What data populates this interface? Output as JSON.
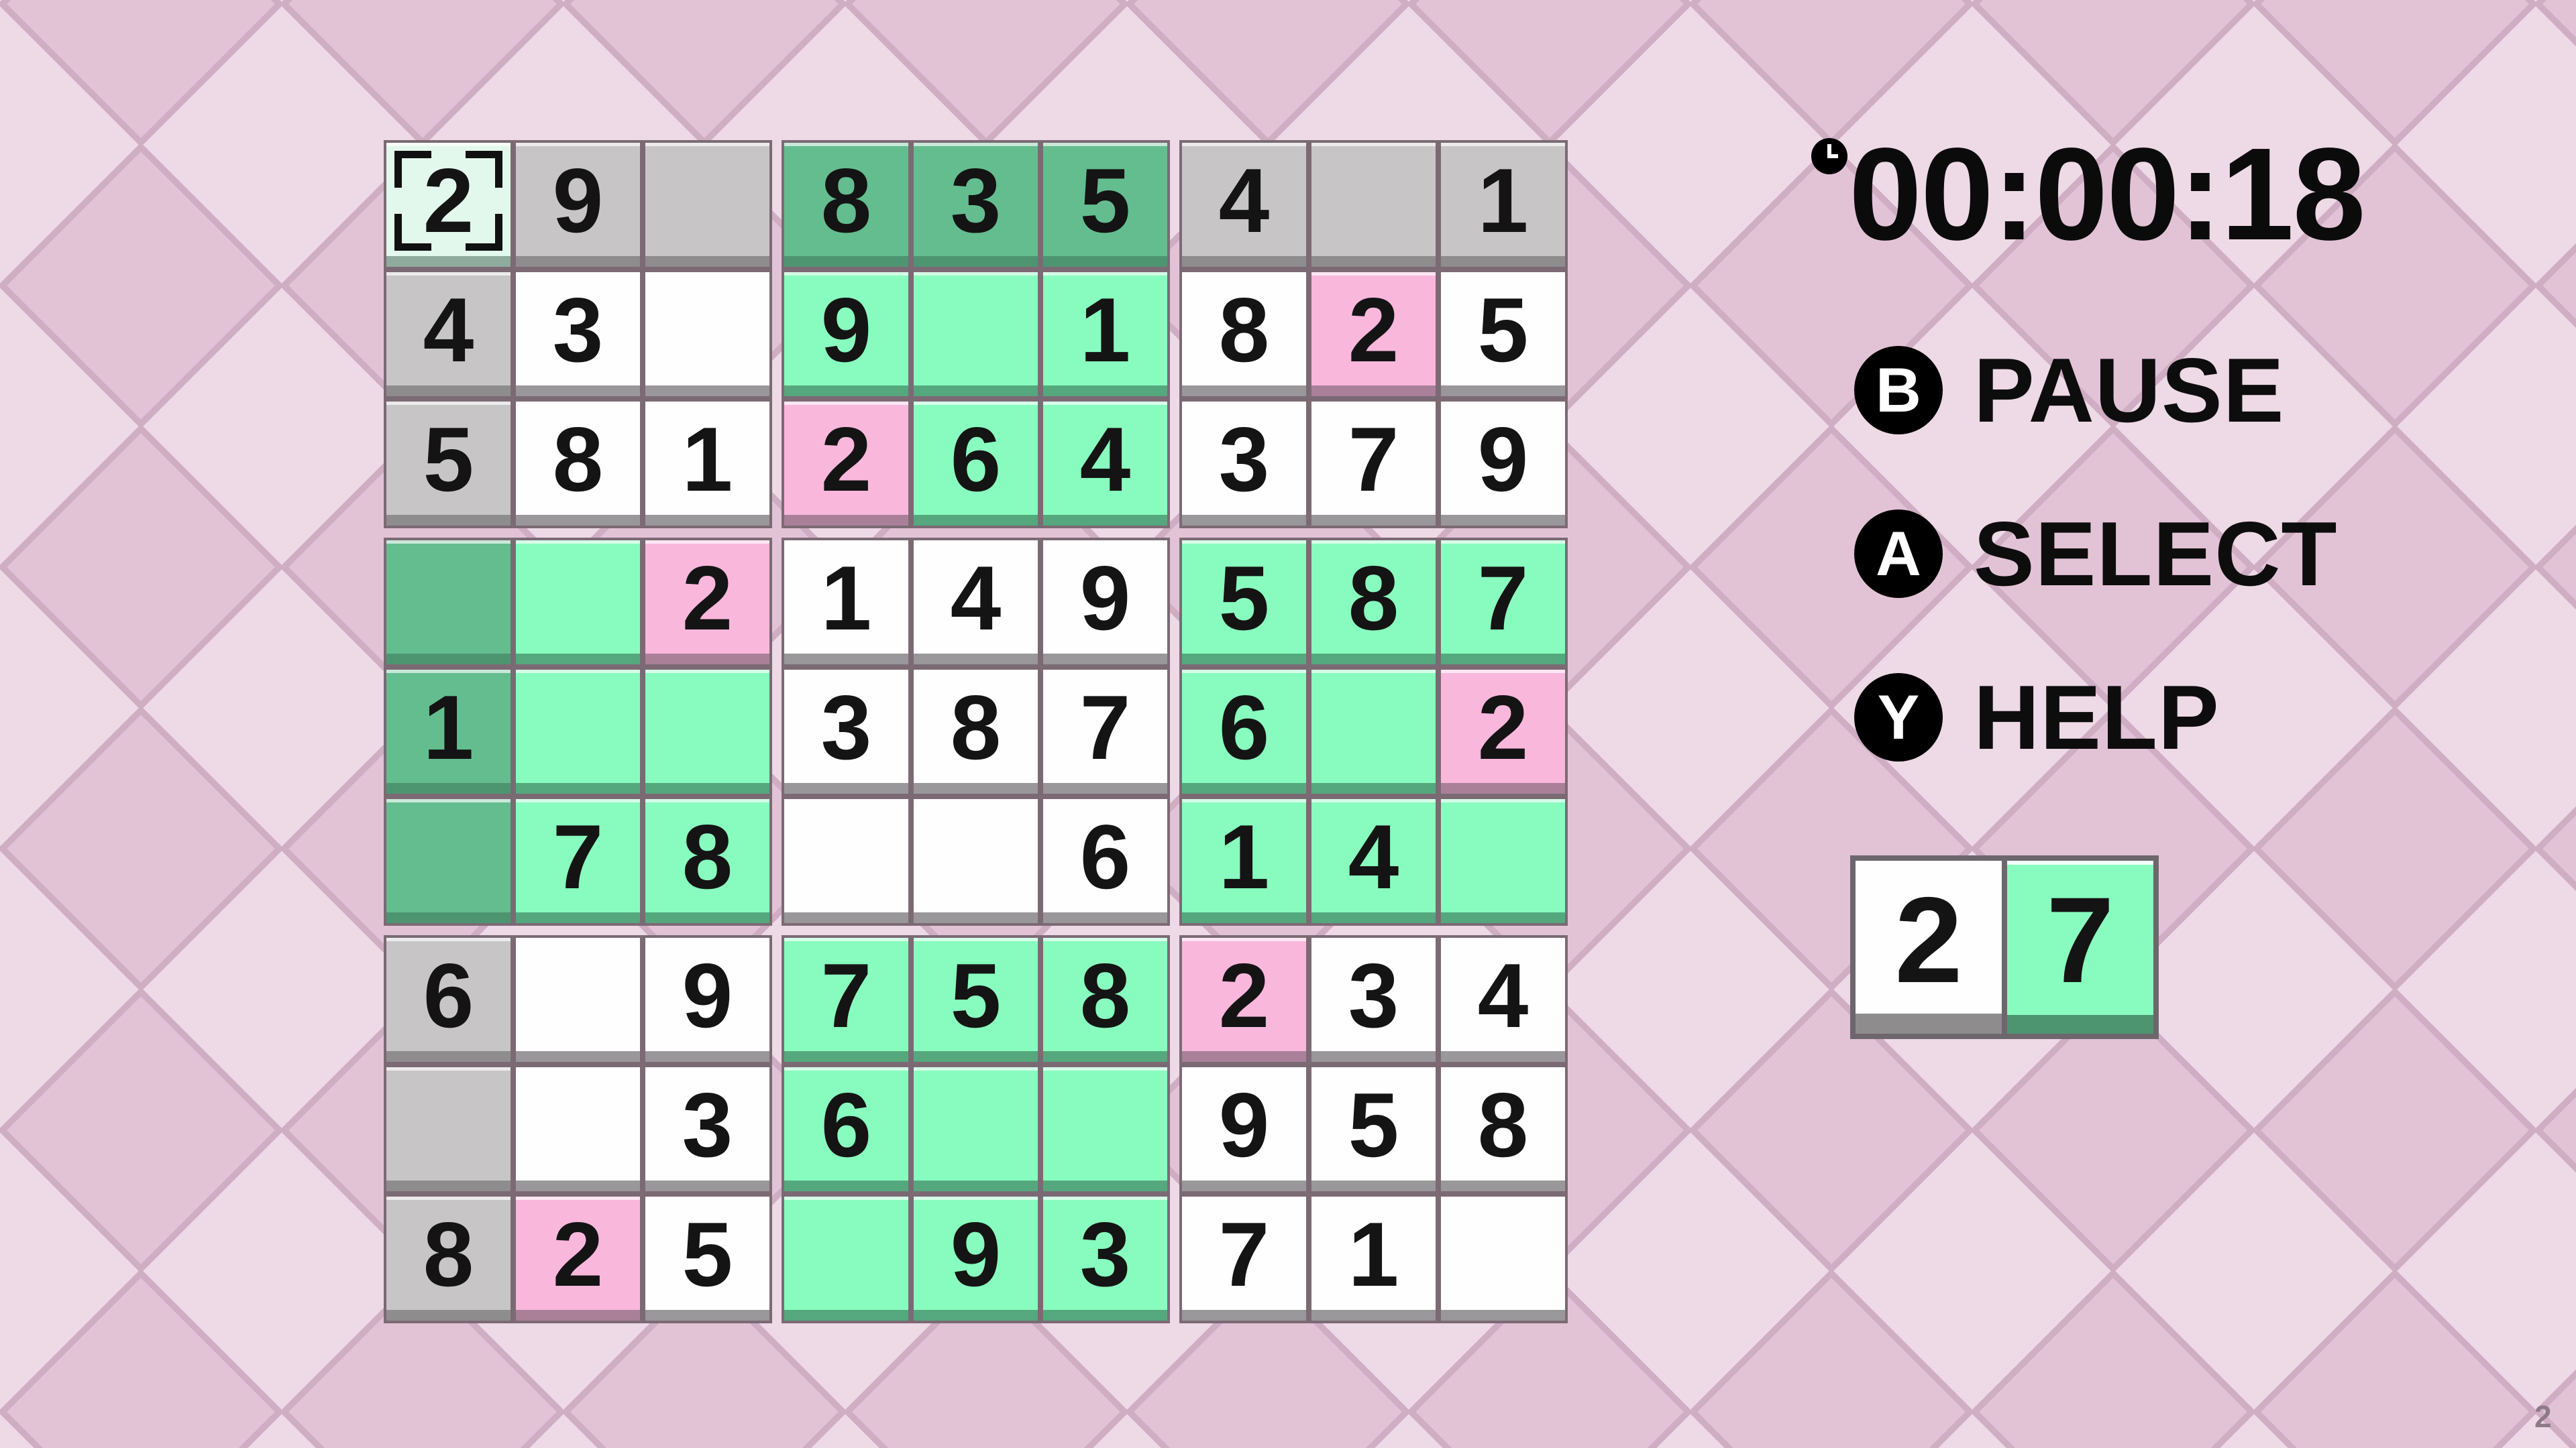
{
  "app": {
    "watermark": "2"
  },
  "colors": {
    "bg_light": "#eed9e6",
    "bg_dark": "#e2c3d6",
    "bg_line": "#cfadc3",
    "border": "#7b6a74",
    "digit": "#141414",
    "text": "#0d0d0d",
    "cell_gray": "#c8c5c7",
    "cell_white": "#fefefe",
    "cell_green": "#88fcbe",
    "cell_dark_green": "#64bd8f",
    "cell_pink": "#f9b7dc",
    "cell_selected": "#e3f8ec",
    "bevel_gray": "#8f8c8e",
    "bevel_white": "#9a979a",
    "bevel_green": "#55a87d",
    "bevel_dark_green": "#4d9571",
    "bevel_pink": "#aa8099",
    "bevel_selected": "#8fab9e",
    "button_bg": "#000000",
    "button_fg": "#ffffff"
  },
  "timer": {
    "value": "00:00:18",
    "icon": "clock-icon"
  },
  "controls": [
    {
      "button": "B",
      "label": "PAUSE"
    },
    {
      "button": "A",
      "label": "SELECT"
    },
    {
      "button": "Y",
      "label": "HELP"
    }
  ],
  "selector": {
    "cells": [
      {
        "value": "2",
        "type": "white"
      },
      {
        "value": "7",
        "type": "green"
      }
    ]
  },
  "grid": {
    "rows": 9,
    "cols": 9,
    "cells": [
      {
        "v": "2",
        "t": "selected"
      },
      {
        "v": "9",
        "t": "given"
      },
      {
        "v": "",
        "t": "given"
      },
      {
        "v": "8",
        "t": "darkgreen"
      },
      {
        "v": "3",
        "t": "darkgreen"
      },
      {
        "v": "5",
        "t": "darkgreen"
      },
      {
        "v": "4",
        "t": "given"
      },
      {
        "v": "",
        "t": "given"
      },
      {
        "v": "1",
        "t": "given"
      },
      {
        "v": "4",
        "t": "given"
      },
      {
        "v": "3",
        "t": "normal"
      },
      {
        "v": "",
        "t": "normal"
      },
      {
        "v": "9",
        "t": "green"
      },
      {
        "v": "",
        "t": "green"
      },
      {
        "v": "1",
        "t": "green"
      },
      {
        "v": "8",
        "t": "normal"
      },
      {
        "v": "2",
        "t": "pink"
      },
      {
        "v": "5",
        "t": "normal"
      },
      {
        "v": "5",
        "t": "given"
      },
      {
        "v": "8",
        "t": "normal"
      },
      {
        "v": "1",
        "t": "normal"
      },
      {
        "v": "2",
        "t": "pink"
      },
      {
        "v": "6",
        "t": "green"
      },
      {
        "v": "4",
        "t": "green"
      },
      {
        "v": "3",
        "t": "normal"
      },
      {
        "v": "7",
        "t": "normal"
      },
      {
        "v": "9",
        "t": "normal"
      },
      {
        "v": "",
        "t": "darkgreen"
      },
      {
        "v": "",
        "t": "green"
      },
      {
        "v": "2",
        "t": "pink"
      },
      {
        "v": "1",
        "t": "normal"
      },
      {
        "v": "4",
        "t": "normal"
      },
      {
        "v": "9",
        "t": "normal"
      },
      {
        "v": "5",
        "t": "green"
      },
      {
        "v": "8",
        "t": "green"
      },
      {
        "v": "7",
        "t": "green"
      },
      {
        "v": "1",
        "t": "darkgreen"
      },
      {
        "v": "",
        "t": "green"
      },
      {
        "v": "",
        "t": "green"
      },
      {
        "v": "3",
        "t": "normal"
      },
      {
        "v": "8",
        "t": "normal"
      },
      {
        "v": "7",
        "t": "normal"
      },
      {
        "v": "6",
        "t": "green"
      },
      {
        "v": "",
        "t": "green"
      },
      {
        "v": "2",
        "t": "pink"
      },
      {
        "v": "",
        "t": "darkgreen"
      },
      {
        "v": "7",
        "t": "green"
      },
      {
        "v": "8",
        "t": "green"
      },
      {
        "v": "",
        "t": "normal"
      },
      {
        "v": "",
        "t": "normal"
      },
      {
        "v": "6",
        "t": "normal"
      },
      {
        "v": "1",
        "t": "green"
      },
      {
        "v": "4",
        "t": "green"
      },
      {
        "v": "",
        "t": "green"
      },
      {
        "v": "6",
        "t": "given"
      },
      {
        "v": "",
        "t": "normal"
      },
      {
        "v": "9",
        "t": "normal"
      },
      {
        "v": "7",
        "t": "green"
      },
      {
        "v": "5",
        "t": "green"
      },
      {
        "v": "8",
        "t": "green"
      },
      {
        "v": "2",
        "t": "pink"
      },
      {
        "v": "3",
        "t": "normal"
      },
      {
        "v": "4",
        "t": "normal"
      },
      {
        "v": "",
        "t": "given"
      },
      {
        "v": "",
        "t": "normal"
      },
      {
        "v": "3",
        "t": "normal"
      },
      {
        "v": "6",
        "t": "green"
      },
      {
        "v": "",
        "t": "green"
      },
      {
        "v": "",
        "t": "green"
      },
      {
        "v": "9",
        "t": "normal"
      },
      {
        "v": "5",
        "t": "normal"
      },
      {
        "v": "8",
        "t": "normal"
      },
      {
        "v": "8",
        "t": "given"
      },
      {
        "v": "2",
        "t": "pink"
      },
      {
        "v": "5",
        "t": "normal"
      },
      {
        "v": "",
        "t": "green"
      },
      {
        "v": "9",
        "t": "green"
      },
      {
        "v": "3",
        "t": "green"
      },
      {
        "v": "7",
        "t": "normal"
      },
      {
        "v": "1",
        "t": "normal"
      },
      {
        "v": "",
        "t": "normal"
      }
    ]
  }
}
